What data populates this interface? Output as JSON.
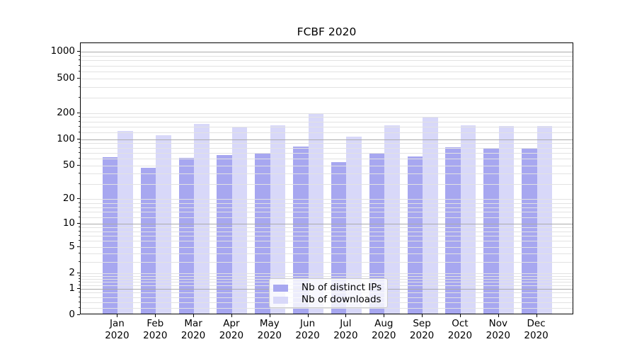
{
  "figure": {
    "title": "FCBF 2020"
  },
  "chart_data": {
    "type": "bar",
    "title": "FCBF 2020",
    "months": [
      "Jan",
      "Feb",
      "Mar",
      "Apr",
      "May",
      "Jun",
      "Jul",
      "Aug",
      "Sep",
      "Oct",
      "Nov",
      "Dec"
    ],
    "year": "2020",
    "categories": [
      "Jan 2020",
      "Feb 2020",
      "Mar 2020",
      "Apr 2020",
      "May 2020",
      "Jun 2020",
      "Jul 2020",
      "Aug 2020",
      "Sep 2020",
      "Oct 2020",
      "Nov 2020",
      "Dec 2020"
    ],
    "series": [
      {
        "name": "Nb of distinct IPs",
        "color": "#a7a7f0",
        "values": [
          60,
          45,
          59,
          63,
          66,
          79,
          52,
          67,
          61,
          78,
          76,
          77
        ]
      },
      {
        "name": "Nb of downloads",
        "color": "#d8d8f9",
        "values": [
          121,
          107,
          144,
          135,
          139,
          190,
          104,
          140,
          170,
          140,
          137,
          138
        ]
      }
    ],
    "yscale": "log1p",
    "yticks": [
      0,
      1,
      2,
      5,
      10,
      20,
      50,
      100,
      200,
      500,
      1000
    ],
    "ylim": [
      0,
      1258
    ],
    "xlabel": "",
    "ylabel": "",
    "grid": true,
    "legend_position": "lower center",
    "colors": {
      "major_grid": "#ababab",
      "minor_grid": "#e2e2e2",
      "axis": "#000000"
    }
  }
}
